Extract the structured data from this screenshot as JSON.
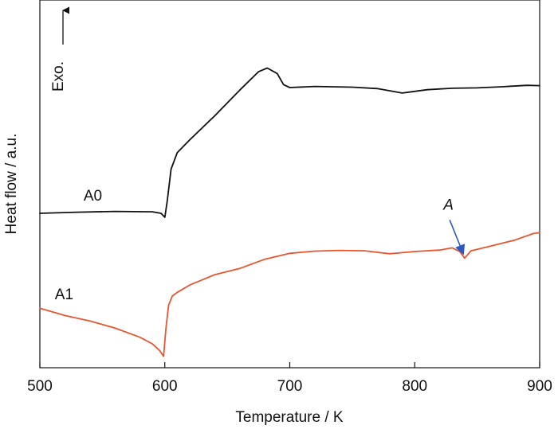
{
  "chart_data": {
    "type": "line",
    "title": "",
    "xlabel": "Temperature / K",
    "ylabel": "Heat flow / a.u.",
    "xlim": [
      500,
      900
    ],
    "ylim": [
      0,
      100
    ],
    "xticks": [
      500,
      600,
      700,
      800,
      900
    ],
    "xtick_labels": [
      "500",
      "600",
      "700",
      "800",
      "900"
    ],
    "yticks_shown": false,
    "grid": false,
    "exo_indicator": {
      "label": "Exo.",
      "direction": "up"
    },
    "series": [
      {
        "name": "A0",
        "color": "#111111",
        "x": [
          500,
          530,
          560,
          590,
          597,
          600,
          602,
          605,
          610,
          620,
          640,
          660,
          675,
          682,
          690,
          695,
          700,
          720,
          750,
          770,
          790,
          810,
          830,
          850,
          870,
          890,
          900
        ],
        "y": [
          42.0,
          42.3,
          42.5,
          42.4,
          42.0,
          40.9,
          45.5,
          54.0,
          58.5,
          62.0,
          68.5,
          75.5,
          80.5,
          81.5,
          80.0,
          77.0,
          76.2,
          76.5,
          76.3,
          75.9,
          74.7,
          75.6,
          76.0,
          76.1,
          76.4,
          76.8,
          76.7
        ]
      },
      {
        "name": "A1",
        "color": "#e8552f",
        "x": [
          500,
          520,
          540,
          560,
          580,
          590,
          596,
          599,
          601,
          603,
          606,
          610,
          620,
          640,
          660,
          680,
          700,
          720,
          740,
          760,
          780,
          800,
          820,
          830,
          836,
          840,
          845,
          860,
          880,
          895,
          900
        ],
        "y": [
          16.2,
          14.2,
          12.7,
          10.8,
          8.3,
          6.5,
          4.6,
          3.1,
          11.0,
          17.0,
          19.5,
          20.5,
          22.5,
          25.3,
          27.0,
          29.5,
          31.1,
          31.7,
          31.9,
          31.8,
          31.0,
          31.6,
          32.0,
          32.6,
          31.6,
          29.8,
          31.8,
          33.0,
          34.7,
          36.5,
          36.7
        ]
      }
    ],
    "series_labels": [
      {
        "text": "A0",
        "x": 535,
        "y": 45.5
      },
      {
        "text": "A1",
        "x": 512,
        "y": 18.6
      }
    ],
    "annotations": [
      {
        "text": "A",
        "x": 823,
        "y": 43.0,
        "arrow_from": [
          828,
          40.2
        ],
        "arrow_to": [
          839,
          30.9
        ],
        "arrow_color": "#2b59c3"
      }
    ]
  }
}
